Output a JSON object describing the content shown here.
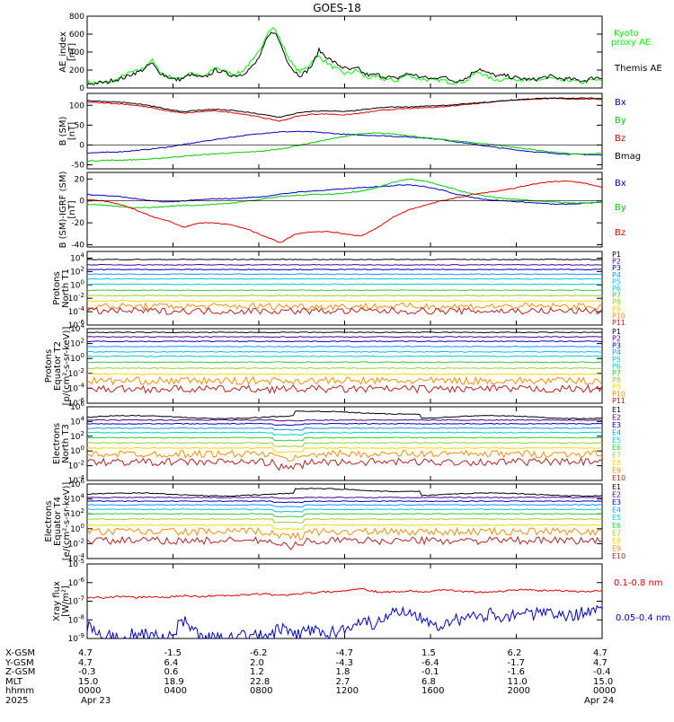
{
  "title": "GOES-18",
  "chart_data": [
    {
      "type": "line",
      "ylabel": [
        "AE_index",
        "[nT]"
      ],
      "ylim": [
        0,
        800
      ],
      "yticks": [
        "0",
        "200",
        "400",
        "600",
        "800"
      ],
      "series": [
        {
          "name": "Kyoto proxy AE",
          "color": "#00ff00",
          "legend": [
            "Kyoto",
            "proxy AE"
          ],
          "values": [
            60,
            60,
            55,
            60,
            75,
            110,
            150,
            180,
            190,
            230,
            320,
            210,
            150,
            120,
            100,
            120,
            180,
            140,
            120,
            170,
            230,
            200,
            170,
            150,
            180,
            260,
            320,
            450,
            620,
            670,
            540,
            380,
            250,
            180,
            220,
            300,
            350,
            300,
            240,
            200,
            160,
            170,
            200,
            130,
            110,
            120,
            100,
            90,
            80,
            120,
            150,
            110,
            100,
            90,
            80,
            90,
            70,
            60,
            70,
            80,
            150,
            180,
            130,
            100,
            90,
            100,
            110,
            100,
            90,
            80,
            90,
            100,
            110,
            90,
            80,
            90,
            70,
            60,
            80,
            90,
            80
          ]
        },
        {
          "name": "Themis AE",
          "color": "#000000",
          "legend": [
            "Themis AE"
          ],
          "values": [
            40,
            50,
            60,
            60,
            90,
            100,
            120,
            160,
            180,
            220,
            280,
            190,
            140,
            110,
            90,
            110,
            150,
            130,
            110,
            150,
            200,
            180,
            150,
            140,
            150,
            200,
            260,
            380,
            560,
            640,
            500,
            320,
            200,
            140,
            180,
            260,
            420,
            360,
            300,
            260,
            220,
            200,
            220,
            160,
            140,
            150,
            130,
            120,
            100,
            140,
            160,
            140,
            120,
            110,
            100,
            140,
            100,
            80,
            90,
            110,
            180,
            220,
            170,
            150,
            130,
            140,
            120,
            110,
            100,
            90,
            100,
            120,
            130,
            110,
            100,
            100,
            90,
            80,
            100,
            120,
            110
          ]
        }
      ]
    },
    {
      "type": "line",
      "ylabel": [
        "B (SM)",
        "[nT]"
      ],
      "ylim": [
        -60,
        130
      ],
      "yticks": [
        "-50",
        "0",
        "50",
        "100"
      ],
      "series": [
        {
          "name": "Bx",
          "color": "#0000cc",
          "values": [
            -20,
            -19,
            -17,
            -14,
            -10,
            -5,
            1,
            8,
            14,
            20,
            25,
            30,
            33,
            34,
            33,
            30,
            27,
            25,
            24,
            22,
            20,
            18,
            14,
            8,
            2,
            -4,
            -9,
            -14,
            -18,
            -21,
            -23,
            -24,
            -25
          ]
        },
        {
          "name": "By",
          "color": "#00cc00",
          "values": [
            -40,
            -39,
            -38,
            -37,
            -35,
            -32,
            -28,
            -25,
            -22,
            -20,
            -18,
            -15,
            -10,
            -2,
            6,
            14,
            22,
            28,
            30,
            28,
            24,
            18,
            14,
            10,
            6,
            2,
            -3,
            -8,
            -13,
            -18,
            -22,
            -23,
            -21
          ]
        },
        {
          "name": "Bz",
          "color": "#dd0000",
          "values": [
            108,
            106,
            104,
            100,
            94,
            86,
            80,
            84,
            86,
            82,
            76,
            68,
            60,
            72,
            78,
            78,
            76,
            80,
            86,
            90,
            92,
            94,
            96,
            100,
            104,
            108,
            112,
            114,
            116,
            117,
            116,
            116,
            115
          ]
        },
        {
          "name": "Bmag",
          "color": "#000000",
          "values": [
            112,
            110,
            108,
            104,
            98,
            90,
            84,
            88,
            90,
            87,
            82,
            76,
            70,
            80,
            85,
            86,
            84,
            88,
            93,
            96,
            96,
            98,
            99,
            102,
            105,
            108,
            112,
            115,
            117,
            118,
            118,
            118,
            117
          ]
        }
      ]
    },
    {
      "type": "line",
      "ylabel": [
        "B (SM)-IGRF (SM)",
        "[nT]"
      ],
      "ylim": [
        -42,
        26
      ],
      "yticks": [
        "-40",
        "-20",
        "0",
        "20"
      ],
      "series": [
        {
          "name": "Bx",
          "color": "#0000cc",
          "values": [
            6,
            5,
            4,
            2,
            0,
            -1,
            0,
            1,
            2,
            2,
            3,
            4,
            6,
            8,
            9,
            10,
            11,
            12,
            13,
            14,
            15,
            13,
            10,
            6,
            3,
            1,
            0,
            -1,
            -2,
            -3,
            -3,
            -2,
            -1
          ]
        },
        {
          "name": "By",
          "color": "#00cc00",
          "values": [
            -3,
            -4,
            -5,
            -6,
            -6,
            -5,
            -4,
            -4,
            -3,
            -2,
            0,
            2,
            4,
            5,
            6,
            6,
            7,
            9,
            12,
            17,
            20,
            18,
            14,
            10,
            6,
            4,
            2,
            1,
            0,
            -1,
            -2,
            -2,
            -1
          ]
        },
        {
          "name": "Bz",
          "color": "#dd0000",
          "values": [
            1,
            0,
            -3,
            -8,
            -14,
            -18,
            -24,
            -20,
            -20,
            -22,
            -26,
            -32,
            -38,
            -30,
            -28,
            -28,
            -30,
            -32,
            -25,
            -15,
            -8,
            -4,
            0,
            3,
            6,
            8,
            10,
            13,
            16,
            18,
            18,
            16,
            12
          ]
        }
      ]
    },
    {
      "type": "line",
      "log": true,
      "ylabel": [
        "Protons",
        "North T1"
      ],
      "ylim": [
        -6,
        5
      ],
      "yticks": [
        {
          "b": "10",
          "e": "4",
          "v": 4
        },
        {
          "b": "10",
          "e": "2",
          "v": 2
        },
        {
          "b": "10",
          "e": "0",
          "v": 0
        },
        {
          "b": "10",
          "e": "-2",
          "v": -2
        },
        {
          "b": "10",
          "e": "-4",
          "v": -4
        },
        {
          "b": "10",
          "e": "-6",
          "v": -6
        }
      ],
      "channels": [
        "P1",
        "P2",
        "P3",
        "P4",
        "P5",
        "P6",
        "P7",
        "P8",
        "P9",
        "P10",
        "P11"
      ],
      "channel_colors": [
        "#000000",
        "#4b0082",
        "#0000cd",
        "#1e90ff",
        "#00bfff",
        "#00ced1",
        "#32cd32",
        "#9acd32",
        "#ffd700",
        "#ff8c00",
        "#b22222"
      ],
      "log_levels": [
        3.8,
        3.0,
        2.3,
        1.6,
        0.9,
        0.1,
        -0.8,
        -1.6,
        -2.4,
        -3.2,
        -3.9
      ]
    },
    {
      "type": "line",
      "log": true,
      "ylabel": [
        "Protons",
        "Equator T2",
        "[p/(cm²-s-sr-keV)]"
      ],
      "ylim": [
        -6,
        4
      ],
      "yticks": [
        {
          "b": "10",
          "e": "4",
          "v": 4
        },
        {
          "b": "10",
          "e": "2",
          "v": 2
        },
        {
          "b": "10",
          "e": "0",
          "v": 0
        },
        {
          "b": "10",
          "e": "-2",
          "v": -2
        },
        {
          "b": "10",
          "e": "-4",
          "v": -4
        },
        {
          "b": "10",
          "e": "-6",
          "v": -6
        }
      ],
      "channels": [
        "P1",
        "P2",
        "P3",
        "P4",
        "P5",
        "P6",
        "P7",
        "P8",
        "P9",
        "P10",
        "P11"
      ],
      "channel_colors": [
        "#000000",
        "#4b0082",
        "#0000cd",
        "#1e90ff",
        "#00bfff",
        "#00ced1",
        "#32cd32",
        "#9acd32",
        "#ffd700",
        "#ff8c00",
        "#b22222"
      ],
      "log_levels": [
        3.5,
        2.9,
        2.3,
        1.6,
        0.9,
        0.3,
        -0.5,
        -1.3,
        -2.1,
        -3.0,
        -4.1
      ]
    },
    {
      "type": "line",
      "log": true,
      "ylabel": [
        "Electrons",
        "North T3"
      ],
      "ylim": [
        -4,
        6
      ],
      "yticks": [
        {
          "b": "10",
          "e": "6",
          "v": 6
        },
        {
          "b": "10",
          "e": "4",
          "v": 4
        },
        {
          "b": "10",
          "e": "2",
          "v": 2
        },
        {
          "b": "10",
          "e": "0",
          "v": 0
        },
        {
          "b": "10",
          "e": "-2",
          "v": -2
        },
        {
          "b": "10",
          "e": "-4",
          "v": -4
        }
      ],
      "channels": [
        "E1",
        "E2",
        "E3",
        "E4",
        "E5",
        "E6",
        "E7",
        "E8",
        "E9",
        "E10"
      ],
      "channel_colors": [
        "#000000",
        "#4b0082",
        "#0000cd",
        "#1e90ff",
        "#00ced1",
        "#32cd32",
        "#9acd32",
        "#ffd700",
        "#ff8c00",
        "#b22222"
      ],
      "log_levels": [
        4.6,
        4.2,
        3.7,
        3.1,
        2.5,
        1.8,
        1.1,
        0.4,
        -0.4,
        -1.5
      ]
    },
    {
      "type": "line",
      "log": true,
      "ylabel": [
        "Electrons",
        "Equator T4",
        "[e/(cm²-s-sr-keV)]"
      ],
      "ylim": [
        -4,
        6
      ],
      "yticks": [
        {
          "b": "10",
          "e": "6",
          "v": 6
        },
        {
          "b": "10",
          "e": "4",
          "v": 4
        },
        {
          "b": "10",
          "e": "2",
          "v": 2
        },
        {
          "b": "10",
          "e": "0",
          "v": 0
        },
        {
          "b": "10",
          "e": "-2",
          "v": -2
        },
        {
          "b": "10",
          "e": "-4",
          "v": -4
        }
      ],
      "channels": [
        "E1",
        "E2",
        "E3",
        "E4",
        "E5",
        "E6",
        "E7",
        "E8",
        "E9",
        "E10"
      ],
      "channel_colors": [
        "#000000",
        "#4b0082",
        "#0000cd",
        "#1e90ff",
        "#00ced1",
        "#32cd32",
        "#9acd32",
        "#ffd700",
        "#ff8c00",
        "#b22222"
      ],
      "log_levels": [
        4.6,
        4.2,
        3.7,
        3.2,
        2.6,
        2.0,
        1.3,
        0.5,
        -0.4,
        -1.6
      ]
    },
    {
      "type": "line",
      "log": true,
      "ylabel": [
        "Xray flux",
        "[W/m²]"
      ],
      "ylim": [
        -9,
        -5
      ],
      "yticks": [
        {
          "b": "10",
          "e": "-5",
          "v": -5
        },
        {
          "b": "10",
          "e": "-6",
          "v": -6
        },
        {
          "b": "10",
          "e": "-7",
          "v": -7
        },
        {
          "b": "10",
          "e": "-8",
          "v": -8
        },
        {
          "b": "10",
          "e": "-9",
          "v": -9
        }
      ],
      "series": [
        {
          "name": "0.1-0.8 nm",
          "color": "#dd0000",
          "values": [
            -6.8,
            -6.8,
            -6.75,
            -6.8,
            -6.75,
            -6.8,
            -6.7,
            -6.75,
            -6.7,
            -6.7,
            -6.65,
            -6.6,
            -6.7,
            -6.6,
            -6.55,
            -6.5,
            -6.45,
            -6.3,
            -6.5,
            -6.5,
            -6.45,
            -6.5,
            -6.4,
            -6.45,
            -6.5,
            -6.5,
            -6.45,
            -6.35,
            -6.45,
            -6.4,
            -6.45,
            -6.5,
            -6.4
          ]
        },
        {
          "name": "0.05-0.4 nm",
          "color": "#0000cc",
          "values": [
            -8.3,
            -8.8,
            -9.0,
            -8.7,
            -8.9,
            -9.0,
            -8.0,
            -8.9,
            -9.0,
            -8.8,
            -8.8,
            -8.9,
            -8.5,
            -8.8,
            -8.5,
            -8.8,
            -8.4,
            -8.0,
            -8.3,
            -7.4,
            -7.6,
            -7.9,
            -8.3,
            -8.0,
            -7.9,
            -7.7,
            -7.8,
            -7.6,
            -7.7,
            -7.7,
            -7.8,
            -7.6,
            -7.3
          ]
        }
      ]
    }
  ],
  "x_axis": {
    "rows": [
      {
        "label": "X-GSM",
        "values": [
          "4.7",
          "-1.5",
          "-6.2",
          "-4.7",
          "1.5",
          "6.2",
          "4.7"
        ]
      },
      {
        "label": "Y-GSM",
        "values": [
          "4.7",
          "6.4",
          "2.0",
          "-4.3",
          "-6.4",
          "-1.7",
          "4.7"
        ]
      },
      {
        "label": "Z-GSM",
        "values": [
          "-0.3",
          "0.6",
          "1.2",
          "1.8",
          "-0.1",
          "-1.6",
          "-0.4"
        ]
      },
      {
        "label": "MLT",
        "values": [
          "15.0",
          "18.9",
          "22.8",
          "2.7",
          "6.8",
          "11.0",
          "15.0"
        ]
      },
      {
        "label": "hhmm",
        "values": [
          "0000",
          "0400",
          "0800",
          "1200",
          "1600",
          "2000",
          "0000"
        ]
      },
      {
        "label": "2025",
        "values": [
          "Apr 23",
          "",
          "",
          "",
          "",
          "",
          "Apr 24"
        ]
      }
    ]
  }
}
